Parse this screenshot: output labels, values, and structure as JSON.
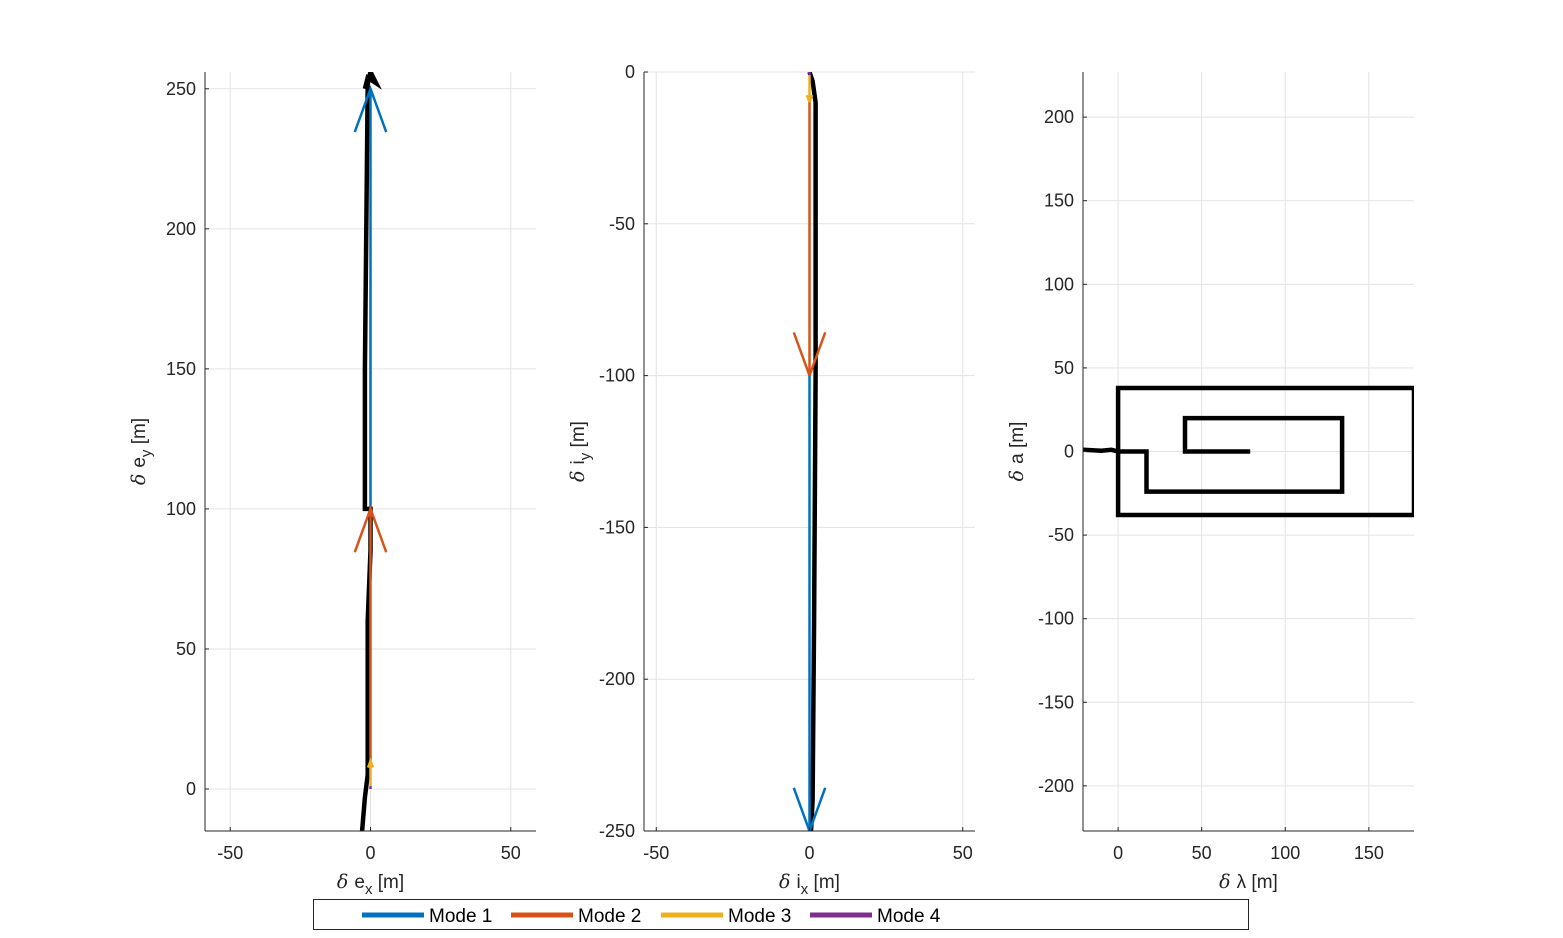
{
  "colors": {
    "mode1": "#0072bd",
    "mode2": "#d95319",
    "mode3": "#edb120",
    "mode4": "#7e2f8e",
    "trajectory": "#000000",
    "grid": "#e3e3e3",
    "axis": "#262626"
  },
  "legend": {
    "items": [
      {
        "label": "Mode 1",
        "color": "#0072bd"
      },
      {
        "label": "Mode 2",
        "color": "#d95319"
      },
      {
        "label": "Mode 3",
        "color": "#edb120"
      },
      {
        "label": "Mode 4",
        "color": "#7e2f8e"
      }
    ]
  },
  "chart_data": [
    {
      "type": "line",
      "xlabel": {
        "greek": "δ",
        "base": "e",
        "sub": "x",
        "unit": " [m]"
      },
      "ylabel": {
        "greek": "δ",
        "base": "e",
        "sub": "y",
        "unit": " [m]"
      },
      "xlim": [
        -59,
        59
      ],
      "ylim": [
        -15,
        256
      ],
      "xticks": [
        -50,
        0,
        50
      ],
      "yticks": [
        0,
        50,
        100,
        150,
        200,
        250
      ],
      "grid": true,
      "trajectory": {
        "segments": [
          [
            [
              -3,
              -15
            ],
            [
              -2,
              -3
            ],
            [
              -1,
              5
            ],
            [
              -1,
              10
            ],
            [
              -1,
              30
            ],
            [
              -1,
              60
            ],
            [
              0,
              85
            ],
            [
              0,
              100
            ],
            [
              -2,
              100
            ],
            [
              -2,
              150
            ],
            [
              -1.5,
              200
            ],
            [
              -1,
              252
            ],
            [
              0,
              256
            ],
            [
              2,
              252
            ],
            [
              -1,
              254
            ],
            [
              -2,
              250
            ]
          ]
        ]
      },
      "arrows": [
        {
          "mode": "Mode 1",
          "from": [
            0,
            100
          ],
          "to": [
            0,
            250
          ],
          "head_angle_deg": 20
        },
        {
          "mode": "Mode 2",
          "from": [
            0,
            10
          ],
          "to": [
            0,
            100
          ],
          "head_angle_deg": 20
        },
        {
          "mode": "Mode 3",
          "from": [
            0,
            1
          ],
          "to": [
            0,
            10
          ],
          "head_angle_deg": 20
        },
        {
          "mode": "Mode 4",
          "from": [
            0,
            0
          ],
          "to": [
            0,
            1
          ],
          "head_angle_deg": 20
        }
      ]
    },
    {
      "type": "line",
      "xlabel": {
        "greek": "δ",
        "base": "i",
        "sub": "x",
        "unit": " [m]"
      },
      "ylabel": {
        "greek": "δ",
        "base": "i",
        "sub": "y",
        "unit": " [m]"
      },
      "xlim": [
        -54,
        54
      ],
      "ylim": [
        -250,
        0
      ],
      "xticks": [
        -50,
        0,
        50
      ],
      "yticks": [
        0,
        -50,
        -100,
        -150,
        -200,
        -250
      ],
      "grid": true,
      "trajectory": {
        "segments": [
          [
            [
              0,
              0
            ],
            [
              1,
              -3
            ],
            [
              2,
              -10
            ],
            [
              2,
              -100
            ],
            [
              1.5,
              -180
            ],
            [
              1,
              -240
            ],
            [
              0.5,
              -250
            ]
          ]
        ]
      },
      "arrows": [
        {
          "mode": "Mode 4",
          "from": [
            0,
            0
          ],
          "to": [
            0,
            -1
          ],
          "head_angle_deg": 20
        },
        {
          "mode": "Mode 3",
          "from": [
            0,
            -1
          ],
          "to": [
            0,
            -10
          ],
          "head_angle_deg": 20
        },
        {
          "mode": "Mode 2",
          "from": [
            0,
            -10
          ],
          "to": [
            0,
            -100
          ],
          "head_angle_deg": 20
        },
        {
          "mode": "Mode 1",
          "from": [
            0,
            -100
          ],
          "to": [
            0,
            -250
          ],
          "head_angle_deg": 20
        }
      ]
    },
    {
      "type": "line",
      "xlabel": {
        "greek": "δ",
        "base": "λ",
        "sub": "",
        "unit": " [m]"
      },
      "ylabel": {
        "greek": "δ",
        "base": "a",
        "sub": "",
        "unit": " [m]"
      },
      "xlim": [
        -21,
        177
      ],
      "ylim": [
        -227,
        227
      ],
      "xticks": [
        0,
        50,
        100,
        150
      ],
      "yticks": [
        200,
        150,
        100,
        50,
        0,
        -50,
        -100,
        -150,
        -200
      ],
      "grid": true,
      "trajectory": {
        "segments": [
          [
            [
              -21,
              1
            ],
            [
              -10,
              0.5
            ],
            [
              -4,
              1
            ],
            [
              0,
              0
            ],
            [
              17,
              0
            ],
            [
              17,
              -24
            ],
            [
              134,
              -24
            ],
            [
              134,
              20
            ],
            [
              40,
              20
            ],
            [
              40,
              0
            ],
            [
              79,
              0
            ]
          ],
          [
            [
              0,
              0
            ],
            [
              0,
              38
            ],
            [
              177,
              38
            ],
            [
              177,
              -38
            ],
            [
              0,
              -38
            ],
            [
              0,
              0
            ]
          ]
        ]
      },
      "arrows": []
    }
  ]
}
